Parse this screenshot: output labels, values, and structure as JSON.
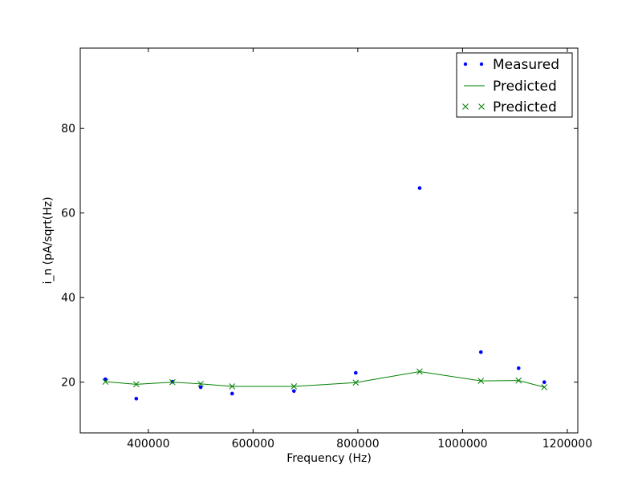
{
  "chart_data": {
    "type": "scatter",
    "xlabel": "Frequency (Hz)",
    "ylabel": "i_n (pA/sqrt(Hz)",
    "xlim": [
      270000,
      1220000
    ],
    "ylim": [
      8,
      99
    ],
    "xticks": [
      400000,
      600000,
      800000,
      1000000,
      1200000
    ],
    "xtick_labels": [
      "400000",
      "600000",
      "800000",
      "1000000",
      "1200000"
    ],
    "yticks": [
      20,
      40,
      60,
      80
    ],
    "ytick_labels": [
      "20",
      "40",
      "60",
      "80"
    ],
    "grid": false,
    "legend_position": "top-right",
    "series": [
      {
        "name": "Measured",
        "style": "dots",
        "color": "#0000ff",
        "x": [
          318000,
          377000,
          446000,
          500000,
          560000,
          678000,
          796000,
          918000,
          1035000,
          1107000,
          1156000
        ],
        "y": [
          20.7,
          16.1,
          20.1,
          18.8,
          17.3,
          17.9,
          22.2,
          65.9,
          27.1,
          23.3,
          20.0
        ]
      },
      {
        "name": "Predicted",
        "style": "line",
        "color": "#008000",
        "x": [
          318000,
          377000,
          446000,
          500000,
          560000,
          678000,
          796000,
          918000,
          1035000,
          1107000,
          1156000
        ],
        "y": [
          20.1,
          19.5,
          20.0,
          19.6,
          19.0,
          19.0,
          19.9,
          22.5,
          20.3,
          20.4,
          18.8
        ]
      },
      {
        "name": "Predicted",
        "style": "x-markers",
        "color": "#008000",
        "x": [
          318000,
          377000,
          446000,
          500000,
          560000,
          678000,
          796000,
          918000,
          1035000,
          1107000,
          1156000
        ],
        "y": [
          20.1,
          19.5,
          20.0,
          19.6,
          19.0,
          19.0,
          19.9,
          22.5,
          20.3,
          20.4,
          18.8
        ]
      }
    ]
  }
}
